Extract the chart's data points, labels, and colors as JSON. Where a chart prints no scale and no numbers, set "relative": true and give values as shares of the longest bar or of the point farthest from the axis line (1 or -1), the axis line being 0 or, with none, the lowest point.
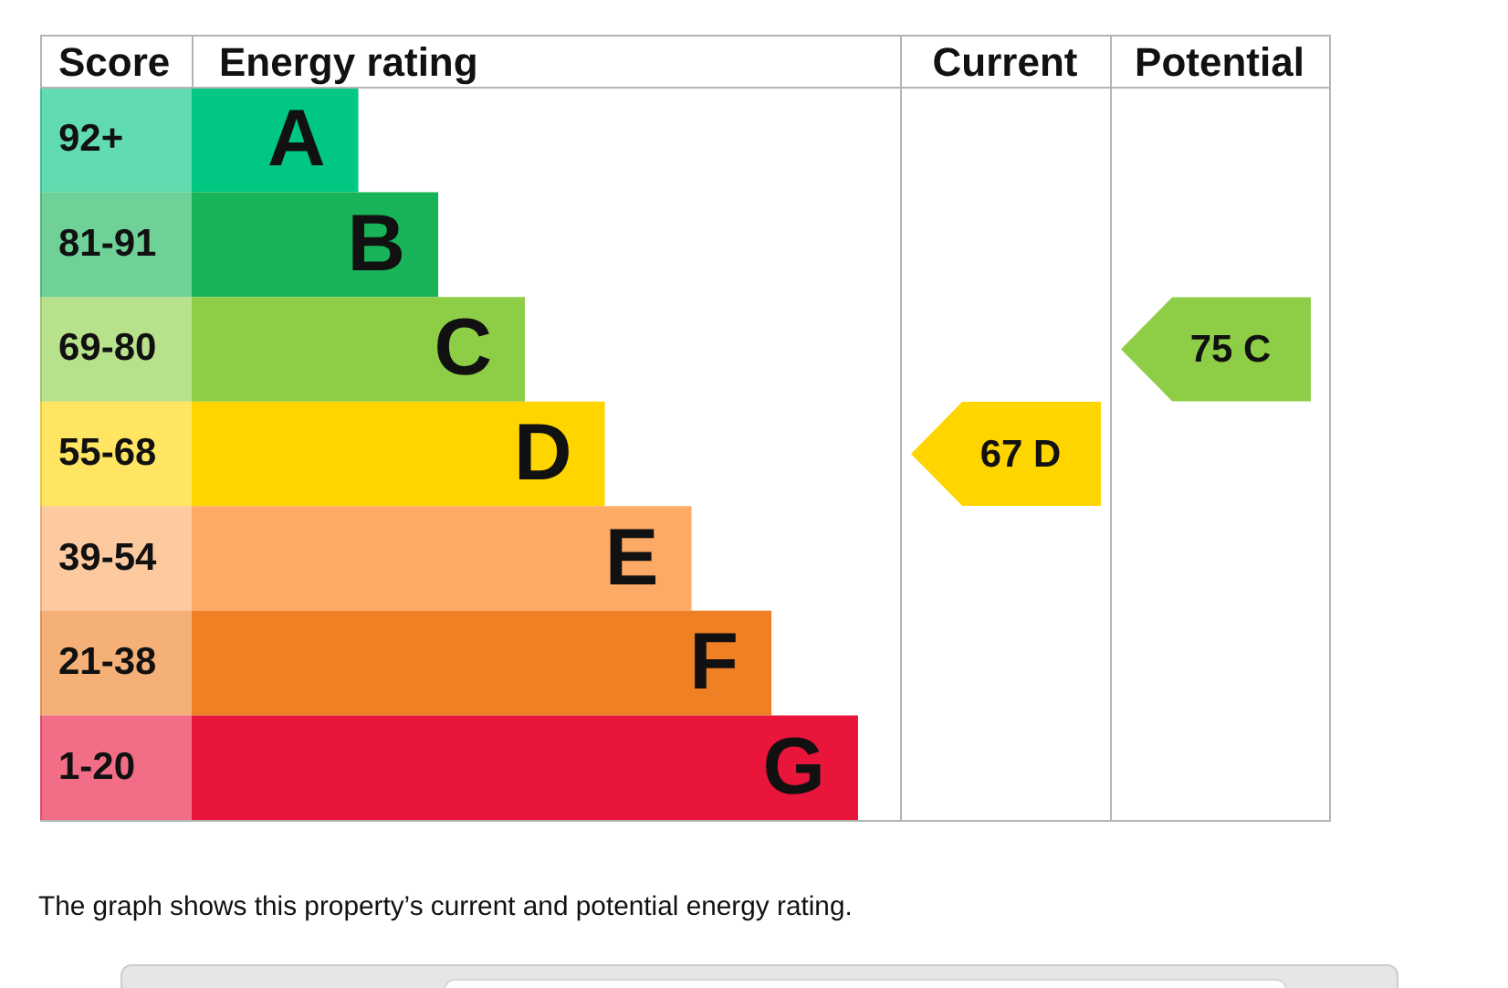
{
  "chart_data": {
    "type": "bar",
    "orientation": "horizontal",
    "relative": true,
    "categories": [
      "A",
      "B",
      "C",
      "D",
      "E",
      "F",
      "G"
    ],
    "values": [
      0.25,
      0.37,
      0.5,
      0.62,
      0.75,
      0.87,
      1
    ],
    "colors": [
      "#00c781",
      "#19b459",
      "#8dce46",
      "#ffd500",
      "#fcaa65",
      "#ef8023",
      "#e9153b"
    ],
    "annotations": [
      "Score",
      "Energy rating",
      "Current",
      "Potential",
      "92+",
      "81-91",
      "69-80",
      "55-68",
      "39-54",
      "21-38",
      "1-20",
      "67 D",
      "75 C",
      "The graph shows this property’s current and potential energy rating."
    ]
  }
}
